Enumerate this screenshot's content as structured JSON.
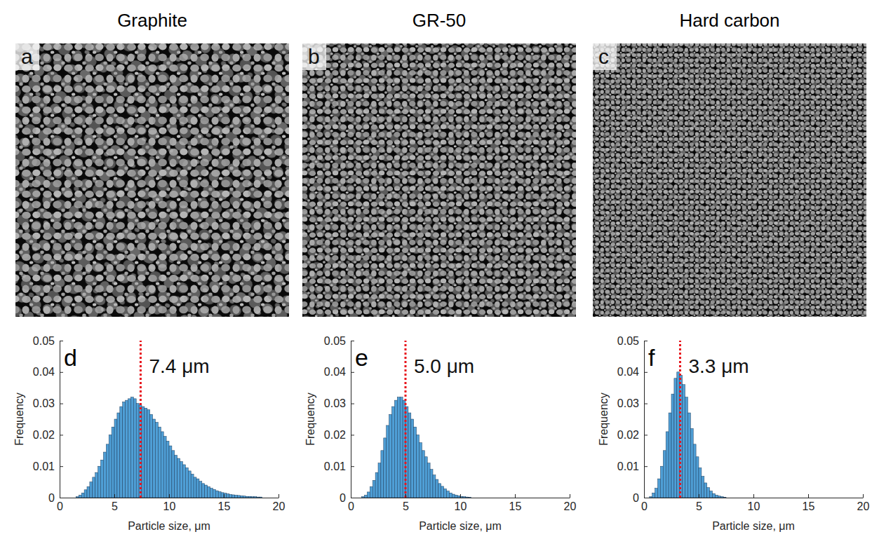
{
  "columns": [
    {
      "title": "Graphite",
      "image_label": "a"
    },
    {
      "title": "GR-50",
      "image_label": "b"
    },
    {
      "title": "Hard carbon",
      "image_label": "c"
    }
  ],
  "chart_data": [
    {
      "type": "histogram",
      "panel": "d",
      "color": "#4f9fd6",
      "grid": false,
      "x_label": "Particle size, μm",
      "y_label": "Frequency",
      "xlim": [
        0,
        20
      ],
      "xticks": [
        0,
        5,
        10,
        15,
        20
      ],
      "ylim": [
        0,
        0.05
      ],
      "yticks": [
        0,
        0.01,
        0.02,
        0.03,
        0.04,
        0.05
      ],
      "bins": [
        1.5,
        1.75,
        2,
        2.25,
        2.5,
        2.75,
        3,
        3.25,
        3.5,
        3.75,
        4,
        4.25,
        4.5,
        4.75,
        5,
        5.25,
        5.5,
        5.75,
        6,
        6.25,
        6.5,
        6.75,
        7,
        7.25,
        7.5,
        7.75,
        8,
        8.25,
        8.5,
        8.75,
        9,
        9.25,
        9.5,
        9.75,
        10,
        10.25,
        10.5,
        10.75,
        11,
        11.25,
        11.5,
        11.75,
        12,
        12.25,
        12.5,
        12.75,
        13,
        13.25,
        13.5,
        13.75,
        14,
        14.25,
        14.5,
        14.75,
        15,
        15.25,
        15.5,
        15.75,
        16,
        16.25,
        16.5,
        16.75,
        17,
        17.25,
        17.5,
        17.75,
        18,
        18.25,
        18.5
      ],
      "values": [
        0.0003,
        0.0008,
        0.0015,
        0.0025,
        0.0035,
        0.005,
        0.0065,
        0.008,
        0.01,
        0.012,
        0.0145,
        0.017,
        0.02,
        0.0225,
        0.025,
        0.027,
        0.029,
        0.0305,
        0.031,
        0.0315,
        0.032,
        0.0315,
        0.03,
        0.0295,
        0.029,
        0.0285,
        0.028,
        0.0265,
        0.025,
        0.024,
        0.0225,
        0.021,
        0.0195,
        0.018,
        0.0165,
        0.015,
        0.0135,
        0.0125,
        0.0115,
        0.0105,
        0.0095,
        0.0085,
        0.0075,
        0.0065,
        0.006,
        0.0052,
        0.0045,
        0.004,
        0.0035,
        0.003,
        0.0026,
        0.0022,
        0.0019,
        0.0016,
        0.0014,
        0.0012,
        0.001,
        0.0009,
        0.0008,
        0.0007,
        0.0006,
        0.0005,
        0.0004,
        0.0004,
        0.0003,
        0.0003,
        0.0002,
        0.0002
      ],
      "annotations": [
        {
          "x": 7.4,
          "label": "7.4 μm",
          "color": "#e8141c",
          "line_style": "dotted"
        }
      ]
    },
    {
      "type": "histogram",
      "panel": "e",
      "color": "#4f9fd6",
      "grid": false,
      "x_label": "Particle size, μm",
      "y_label": "Frequency",
      "xlim": [
        0,
        20
      ],
      "xticks": [
        0,
        5,
        10,
        15,
        20
      ],
      "ylim": [
        0,
        0.05
      ],
      "yticks": [
        0,
        0.01,
        0.02,
        0.03,
        0.04,
        0.05
      ],
      "bins": [
        1,
        1.25,
        1.5,
        1.75,
        2,
        2.25,
        2.5,
        2.75,
        3,
        3.25,
        3.5,
        3.75,
        4,
        4.25,
        4.5,
        4.75,
        5,
        5.25,
        5.5,
        5.75,
        6,
        6.25,
        6.5,
        6.75,
        7,
        7.25,
        7.5,
        7.75,
        8,
        8.25,
        8.5,
        8.75,
        9,
        9.25,
        9.5,
        9.75,
        10,
        10.25,
        10.5,
        10.75,
        11
      ],
      "values": [
        0.0003,
        0.0008,
        0.0018,
        0.0035,
        0.0055,
        0.008,
        0.011,
        0.015,
        0.019,
        0.023,
        0.0265,
        0.029,
        0.031,
        0.032,
        0.032,
        0.031,
        0.029,
        0.027,
        0.025,
        0.0225,
        0.02,
        0.0175,
        0.015,
        0.013,
        0.011,
        0.009,
        0.0072,
        0.0058,
        0.0045,
        0.0036,
        0.0028,
        0.0021,
        0.0015,
        0.0011,
        0.0008,
        0.0006,
        0.0004,
        0.0003,
        0.0002,
        0.0001
      ],
      "annotations": [
        {
          "x": 5.0,
          "label": "5.0 μm",
          "color": "#e8141c",
          "line_style": "dotted"
        }
      ]
    },
    {
      "type": "histogram",
      "panel": "f",
      "color": "#4f9fd6",
      "grid": false,
      "x_label": "Particle size, μm",
      "y_label": "Frequency",
      "xlim": [
        0,
        20
      ],
      "xticks": [
        0,
        5,
        10,
        15,
        20
      ],
      "ylim": [
        0,
        0.05
      ],
      "yticks": [
        0,
        0.01,
        0.02,
        0.03,
        0.04,
        0.05
      ],
      "bins": [
        0.5,
        0.75,
        1,
        1.25,
        1.5,
        1.75,
        2,
        2.25,
        2.5,
        2.75,
        3,
        3.25,
        3.5,
        3.75,
        4,
        4.25,
        4.5,
        4.75,
        5,
        5.25,
        5.5,
        5.75,
        6,
        6.25,
        6.5,
        6.75,
        7,
        7.25,
        7.5
      ],
      "values": [
        0.0003,
        0.0015,
        0.003,
        0.006,
        0.01,
        0.015,
        0.021,
        0.027,
        0.033,
        0.038,
        0.04,
        0.039,
        0.036,
        0.032,
        0.027,
        0.022,
        0.017,
        0.013,
        0.0095,
        0.0068,
        0.0047,
        0.0032,
        0.0021,
        0.0013,
        0.0008,
        0.0005,
        0.0003,
        0.0001
      ],
      "annotations": [
        {
          "x": 3.3,
          "label": "3.3 μm",
          "color": "#e8141c",
          "line_style": "dotted"
        }
      ]
    }
  ]
}
